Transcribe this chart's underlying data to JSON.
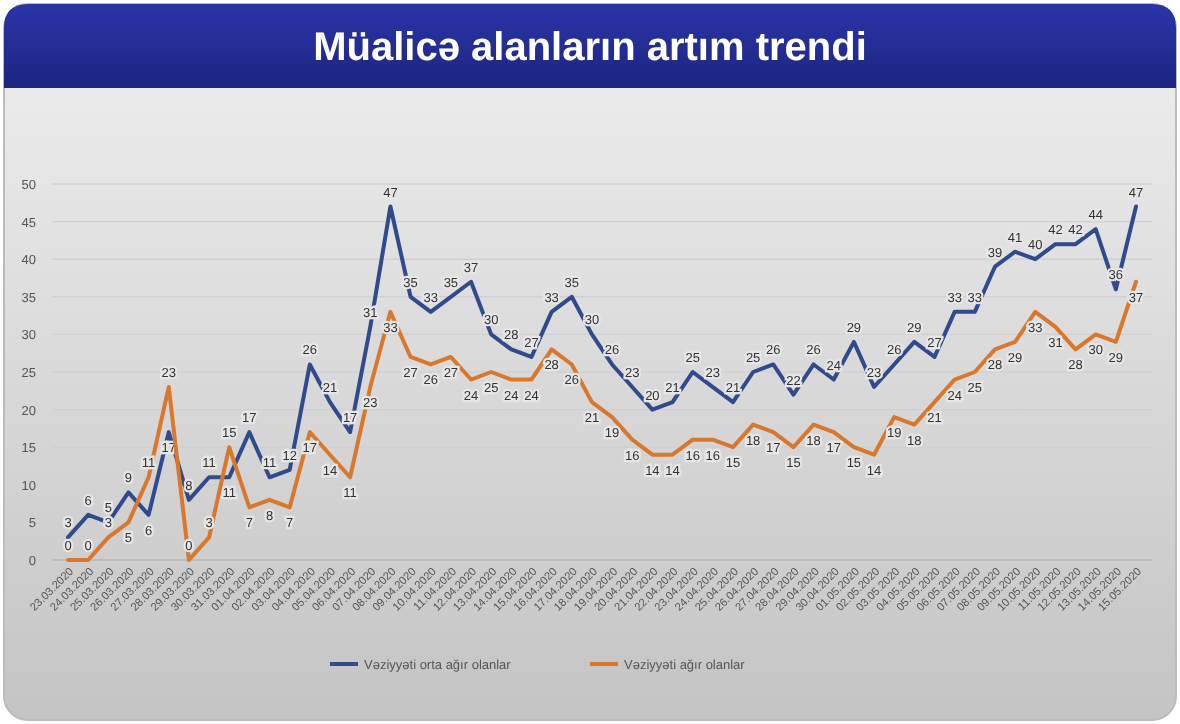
{
  "chart_data": {
    "type": "line",
    "title": "Müalicə alanların artım trendi",
    "categories": [
      "23.03.2020",
      "24.03.2020",
      "25.03.2020",
      "26.03.2020",
      "27.03.2020",
      "28.03.2020",
      "29.03.2020",
      "30.03.2020",
      "31.03.2020",
      "01.04.2020",
      "02.04.2020",
      "03.04.2020",
      "04.04.2020",
      "05.04.2020",
      "06.04.2020",
      "07.04.2020",
      "08.04.2020",
      "09.04.2020",
      "10.04.2020",
      "11.04.2020",
      "12.04.2020",
      "13.04.2020",
      "14.04.2020",
      "15.04.2020",
      "16.04.2020",
      "17.04.2020",
      "18.04.2020",
      "19.04.2020",
      "20.04.2020",
      "21.04.2020",
      "22.04.2020",
      "23.04.2020",
      "24.04.2020",
      "25.04.2020",
      "26.04.2020",
      "27.04.2020",
      "28.04.2020",
      "29.04.2020",
      "30.04.2020",
      "01.05.2020",
      "02.05.2020",
      "03.05.2020",
      "04.05.2020",
      "05.05.2020",
      "06.05.2020",
      "07.05.2020",
      "08.05.2020",
      "09.05.2020",
      "10.05.2020",
      "11.05.2020",
      "12.05.2020",
      "13.05.2020",
      "14.05.2020",
      "15.05.2020"
    ],
    "series": [
      {
        "name": "Vəziyyəti orta ağır olanlar",
        "color": "#2f4b8e",
        "values": [
          3,
          6,
          5,
          9,
          6,
          17,
          8,
          11,
          11,
          17,
          11,
          12,
          26,
          21,
          17,
          31,
          47,
          35,
          33,
          35,
          37,
          30,
          28,
          27,
          33,
          35,
          30,
          26,
          23,
          20,
          21,
          25,
          23,
          21,
          25,
          26,
          22,
          26,
          24,
          29,
          23,
          26,
          29,
          27,
          33,
          33,
          39,
          41,
          40,
          42,
          42,
          44,
          36,
          47
        ]
      },
      {
        "name": "Vəziyyəti ağır olanlar",
        "color": "#d9782d",
        "values": [
          0,
          0,
          3,
          5,
          11,
          23,
          0,
          3,
          15,
          7,
          8,
          7,
          17,
          14,
          11,
          23,
          33,
          27,
          26,
          27,
          24,
          25,
          24,
          24,
          28,
          26,
          21,
          19,
          16,
          14,
          14,
          16,
          16,
          15,
          18,
          17,
          15,
          18,
          17,
          15,
          14,
          19,
          18,
          21,
          24,
          25,
          28,
          29,
          33,
          31,
          28,
          30,
          29,
          37
        ]
      }
    ],
    "ylim": [
      0,
      50
    ],
    "yticks": [
      0,
      5,
      10,
      15,
      20,
      25,
      30,
      35,
      40,
      45,
      50
    ],
    "grid": "y",
    "data_labels": true,
    "legend": "bottom",
    "marker": "none",
    "line_style": "solid"
  }
}
